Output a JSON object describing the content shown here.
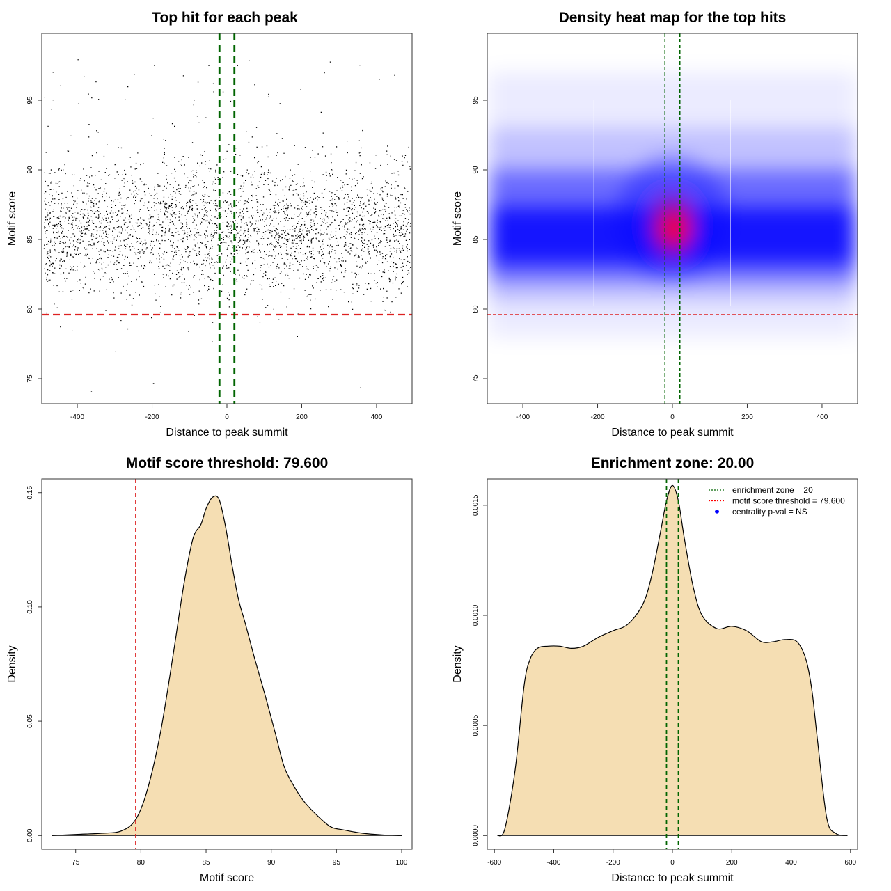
{
  "chart_data": [
    {
      "type": "scatter",
      "title": "Top hit for each peak",
      "xlabel": "Distance to peak summit",
      "ylabel": "Motif score",
      "xlim": [
        -495,
        495
      ],
      "ylim": [
        73.2,
        99.8
      ],
      "xticks": [
        -400,
        -200,
        0,
        200,
        400
      ],
      "yticks": [
        75,
        80,
        85,
        90,
        95
      ],
      "threshold": 79.6,
      "zone": [
        -20,
        20
      ],
      "points_note": "approx. 16000 top-hit points, scores mostly 80-92 centered near 85-86"
    },
    {
      "type": "heatmap",
      "title": "Density heat map for the top hits",
      "xlabel": "Distance to peak summit",
      "ylabel": "Motif score",
      "xlim": [
        -495,
        495
      ],
      "ylim": [
        73.2,
        99.8
      ],
      "xticks": [
        -400,
        -200,
        0,
        200,
        400
      ],
      "yticks": [
        75,
        80,
        85,
        90,
        95
      ],
      "threshold": 79.6,
      "zone": [
        -20,
        20
      ],
      "peak": {
        "x": 5,
        "y": 85.8
      }
    },
    {
      "type": "area",
      "title": "Motif score threshold: 79.600",
      "xlabel": "Motif score",
      "ylabel": "Density",
      "xlim": [
        72.4,
        100.8
      ],
      "ylim": [
        -0.006,
        0.156
      ],
      "xticks": [
        75,
        80,
        85,
        90,
        95,
        100
      ],
      "yticks": [
        0.0,
        0.05,
        0.1,
        0.15
      ],
      "ytick_labels": [
        "0.00",
        "0.05",
        "0.10",
        "0.15"
      ],
      "threshold": 79.6,
      "x": [
        73.2,
        75,
        77,
        78.5,
        79.6,
        80.5,
        81.5,
        82.5,
        83.3,
        84,
        84.6,
        85,
        85.5,
        86,
        86.5,
        87,
        87.5,
        88,
        88.7,
        89.5,
        90.3,
        91,
        91.8,
        92.5,
        93.3,
        94.5,
        95.5,
        97,
        98.5,
        100
      ],
      "y": [
        0,
        0.0005,
        0.001,
        0.002,
        0.007,
        0.02,
        0.045,
        0.08,
        0.11,
        0.13,
        0.136,
        0.143,
        0.148,
        0.147,
        0.135,
        0.118,
        0.103,
        0.093,
        0.078,
        0.062,
        0.045,
        0.03,
        0.021,
        0.015,
        0.01,
        0.004,
        0.0025,
        0.001,
        0.0003,
        0
      ]
    },
    {
      "type": "area",
      "title": "Enrichment zone: 20.00",
      "xlabel": "Distance to peak summit",
      "ylabel": "Density",
      "xlim": [
        -624,
        624
      ],
      "ylim": [
        -6.23e-05,
        0.0016197
      ],
      "xticks": [
        -600,
        -400,
        -200,
        0,
        200,
        400,
        600
      ],
      "yticks": [
        0.0,
        0.0005,
        0.001,
        0.0015
      ],
      "ytick_labels": [
        "0.0000",
        "0.0005",
        "0.0010",
        "0.0015"
      ],
      "zone": [
        -20,
        20
      ],
      "x": [
        -590,
        -565,
        -530,
        -500,
        -480,
        -455,
        -420,
        -380,
        -340,
        -300,
        -250,
        -200,
        -150,
        -100,
        -70,
        -40,
        -20,
        0,
        20,
        40,
        70,
        100,
        150,
        200,
        250,
        300,
        340,
        380,
        420,
        450,
        470,
        490,
        520,
        550,
        590
      ],
      "y": [
        0,
        3e-05,
        0.0003,
        0.00068,
        0.0008,
        0.00085,
        0.00086,
        0.00086,
        0.00085,
        0.00086,
        0.0009,
        0.00093,
        0.00096,
        0.00105,
        0.00118,
        0.00138,
        0.00152,
        0.00159,
        0.00152,
        0.00135,
        0.00113,
        0.001,
        0.00094,
        0.00095,
        0.00093,
        0.00088,
        0.00088,
        0.00089,
        0.00088,
        0.0008,
        0.00066,
        0.00042,
        8e-05,
        1e-05,
        0
      ],
      "legend": [
        {
          "label": "enrichment zone = 20",
          "color": "#006400",
          "style": "dotted"
        },
        {
          "label": "motif score threshold = 79.600",
          "color": "#ff0000",
          "style": "dotted"
        },
        {
          "label": "centrality p-val = NS",
          "color": "#0000ff",
          "style": "point"
        }
      ]
    }
  ],
  "colors": {
    "fill": "#f5deb3",
    "zone": "#006400",
    "threshold": "#dd2222",
    "hot": "#ff0000",
    "cool": "#0000ff"
  }
}
